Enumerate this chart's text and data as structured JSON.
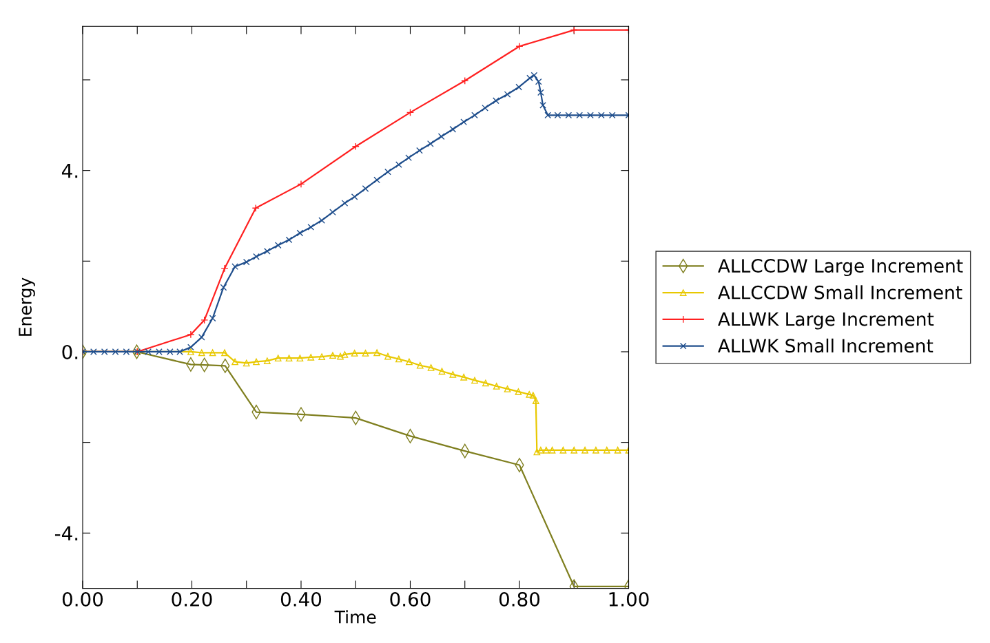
{
  "chart_data": {
    "type": "line",
    "xlabel": "Time",
    "ylabel": "Energy",
    "xlim": [
      0,
      1.0
    ],
    "ylim": [
      -5.22,
      7.18
    ],
    "xticks": [
      {
        "value": 0,
        "label": "0.00"
      },
      {
        "value": 0.1,
        "label": null
      },
      {
        "value": 0.2,
        "label": "0.20"
      },
      {
        "value": 0.3,
        "label": null
      },
      {
        "value": 0.4,
        "label": "0.40"
      },
      {
        "value": 0.5,
        "label": null
      },
      {
        "value": 0.6,
        "label": "0.60"
      },
      {
        "value": 0.7,
        "label": null
      },
      {
        "value": 0.8,
        "label": "0.80"
      },
      {
        "value": 0.9,
        "label": null
      },
      {
        "value": 1.0,
        "label": "1.00"
      }
    ],
    "yticks": [
      {
        "value": -4,
        "label": "-4."
      },
      {
        "value": -2,
        "label": null
      },
      {
        "value": 0,
        "label": "0."
      },
      {
        "value": 2,
        "label": null
      },
      {
        "value": 4,
        "label": "4."
      },
      {
        "value": 6,
        "label": null
      }
    ],
    "grid": false,
    "legend": "right",
    "line_style": "solid",
    "series": [
      {
        "name": "ALLCCDW Large Increment",
        "color": "#7f7f1f",
        "marker": "diamond",
        "x": [
          0,
          0.099,
          0.198,
          0.223,
          0.261,
          0.318,
          0.4,
          0.5,
          0.6,
          0.7,
          0.8,
          0.9,
          1.0
        ],
        "values": [
          0,
          0,
          -0.28,
          -0.29,
          -0.31,
          -1.33,
          -1.38,
          -1.46,
          -1.86,
          -2.19,
          -2.5,
          -5.18,
          -5.18
        ]
      },
      {
        "name": "ALLCCDW Small Increment",
        "color": "#e8c800",
        "marker": "triangle",
        "x": [
          0,
          0.1,
          0.198,
          0.218,
          0.238,
          0.26,
          0.279,
          0.3,
          0.318,
          0.338,
          0.358,
          0.378,
          0.398,
          0.418,
          0.438,
          0.458,
          0.472,
          0.48,
          0.498,
          0.518,
          0.539,
          0.559,
          0.579,
          0.598,
          0.618,
          0.638,
          0.658,
          0.678,
          0.698,
          0.718,
          0.738,
          0.758,
          0.778,
          0.798,
          0.818,
          0.825,
          0.83,
          0.832,
          0.839,
          0.849,
          0.86,
          0.88,
          0.9,
          0.92,
          0.94,
          0.96,
          0.98,
          1.0
        ],
        "values": [
          0,
          0,
          0,
          -0.02,
          -0.02,
          -0.02,
          -0.22,
          -0.25,
          -0.22,
          -0.2,
          -0.14,
          -0.14,
          -0.14,
          -0.12,
          -0.11,
          -0.08,
          -0.1,
          -0.06,
          -0.03,
          -0.03,
          -0.02,
          -0.1,
          -0.16,
          -0.22,
          -0.3,
          -0.35,
          -0.43,
          -0.5,
          -0.56,
          -0.63,
          -0.69,
          -0.76,
          -0.82,
          -0.88,
          -0.94,
          -0.96,
          -1.08,
          -2.21,
          -2.17,
          -2.17,
          -2.17,
          -2.17,
          -2.17,
          -2.17,
          -2.17,
          -2.17,
          -2.17,
          -2.17
        ]
      },
      {
        "name": "ALLWK Large Increment",
        "color": "#ff2020",
        "marker": "plus",
        "x": [
          0,
          0.1,
          0.198,
          0.223,
          0.26,
          0.317,
          0.4,
          0.5,
          0.6,
          0.7,
          0.8,
          0.9,
          1.0
        ],
        "values": [
          0,
          0,
          0.38,
          0.7,
          1.84,
          3.17,
          3.7,
          4.53,
          5.28,
          5.98,
          6.74,
          7.1,
          7.1
        ]
      },
      {
        "name": "ALLWK Small Increment",
        "color": "#1f4e8c",
        "marker": "cross",
        "x": [
          0,
          0.02,
          0.04,
          0.06,
          0.08,
          0.1,
          0.12,
          0.14,
          0.16,
          0.178,
          0.198,
          0.218,
          0.238,
          0.258,
          0.279,
          0.3,
          0.318,
          0.338,
          0.358,
          0.378,
          0.398,
          0.418,
          0.438,
          0.458,
          0.48,
          0.498,
          0.518,
          0.539,
          0.559,
          0.579,
          0.597,
          0.617,
          0.637,
          0.657,
          0.678,
          0.698,
          0.718,
          0.737,
          0.757,
          0.778,
          0.799,
          0.819,
          0.827,
          0.835,
          0.839,
          0.843,
          0.852,
          0.87,
          0.89,
          0.91,
          0.93,
          0.95,
          0.97,
          1.0
        ],
        "values": [
          0,
          0,
          0,
          0,
          0,
          0,
          0,
          0,
          0,
          0,
          0.1,
          0.32,
          0.74,
          1.42,
          1.88,
          1.98,
          2.1,
          2.22,
          2.35,
          2.47,
          2.62,
          2.75,
          2.9,
          3.08,
          3.28,
          3.42,
          3.6,
          3.79,
          3.97,
          4.13,
          4.28,
          4.44,
          4.59,
          4.75,
          4.91,
          5.07,
          5.22,
          5.38,
          5.54,
          5.68,
          5.84,
          6.04,
          6.1,
          5.96,
          5.72,
          5.44,
          5.22,
          5.22,
          5.22,
          5.22,
          5.22,
          5.22,
          5.22,
          5.22
        ]
      }
    ]
  }
}
